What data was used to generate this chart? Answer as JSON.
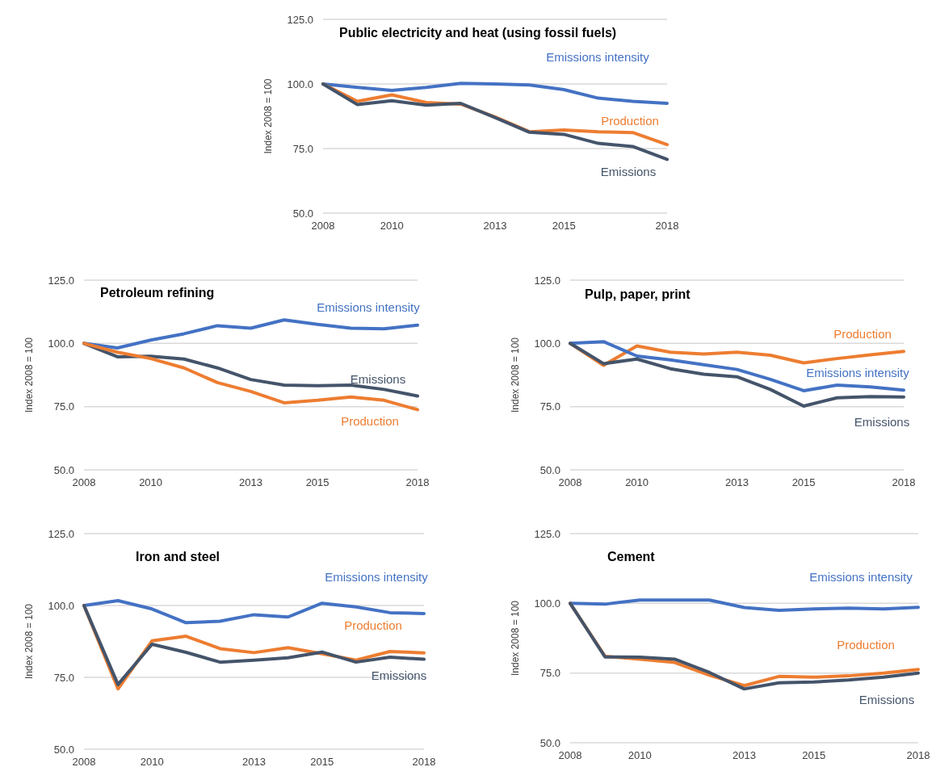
{
  "chart_data": [
    {
      "type": "line",
      "title": "Public electricity and heat (using fossil fuels)",
      "ylabel": "Index 2008 = 100",
      "x": [
        2008,
        2009,
        2010,
        2011,
        2012,
        2013,
        2014,
        2015,
        2016,
        2017,
        2018
      ],
      "xlim": [
        2008,
        2018
      ],
      "xticks": [
        2008,
        2010,
        2013,
        2015,
        2018
      ],
      "ylim": [
        50,
        125
      ],
      "yticks": [
        {
          "value": 50,
          "label": "50.0"
        },
        {
          "value": 75,
          "label": "75.0"
        },
        {
          "value": 100,
          "label": "100.0"
        },
        {
          "value": 125,
          "label": "125.0"
        }
      ],
      "grid": "y",
      "series": [
        {
          "name": "Emissions intensity",
          "color": "#4472c4",
          "values": [
            100,
            98.7,
            97.5,
            98.7,
            100.2,
            100,
            99.6,
            97.8,
            94.5,
            93.3,
            92.5
          ]
        },
        {
          "name": "Production",
          "color": "#ed7d31",
          "values": [
            100,
            93.3,
            95.8,
            92.8,
            92.2,
            87.2,
            81.5,
            82.2,
            81.5,
            81.2,
            76.5
          ]
        },
        {
          "name": "Emissions",
          "color": "#44546a",
          "values": [
            100,
            92,
            93.5,
            91.8,
            92.5,
            87,
            81.3,
            80.5,
            77,
            75.8,
            70.8
          ]
        }
      ]
    },
    {
      "type": "line",
      "title": "Petroleum refining",
      "ylabel": "Index 2008 = 100",
      "x": [
        2008,
        2009,
        2010,
        2011,
        2012,
        2013,
        2014,
        2015,
        2016,
        2017,
        2018
      ],
      "xlim": [
        2008,
        2018
      ],
      "xticks": [
        2008,
        2010,
        2013,
        2015,
        2018
      ],
      "ylim": [
        50,
        125
      ],
      "yticks": [
        {
          "value": 50,
          "label": "50.0"
        },
        {
          "value": 75,
          "label": "75.0"
        },
        {
          "value": 100,
          "label": "100.0"
        },
        {
          "value": 125,
          "label": "125.0"
        }
      ],
      "grid": "y",
      "series": [
        {
          "name": "Emissions intensity",
          "color": "#4472c4",
          "values": [
            100,
            98.2,
            101.3,
            103.8,
            107,
            106,
            109.3,
            107.5,
            106,
            105.8,
            107.2
          ]
        },
        {
          "name": "Emissions",
          "color": "#44546a",
          "values": [
            100,
            94.7,
            94.9,
            93.8,
            90.3,
            85.7,
            83.5,
            83.3,
            83.5,
            81.8,
            79.2
          ]
        },
        {
          "name": "Production",
          "color": "#ed7d31",
          "values": [
            100,
            96.5,
            94,
            90.3,
            84.5,
            81,
            76.5,
            77.5,
            78.8,
            77.5,
            73.8
          ]
        }
      ]
    },
    {
      "type": "line",
      "title": "Pulp, paper, print",
      "ylabel": "Index 2008 = 100",
      "x": [
        2008,
        2009,
        2010,
        2011,
        2012,
        2013,
        2014,
        2015,
        2016,
        2017,
        2018
      ],
      "xlim": [
        2008,
        2018
      ],
      "xticks": [
        2008,
        2010,
        2013,
        2015,
        2018
      ],
      "ylim": [
        50,
        125
      ],
      "yticks": [
        {
          "value": 50,
          "label": "50.0"
        },
        {
          "value": 75,
          "label": "75.0"
        },
        {
          "value": 100,
          "label": "100.0"
        },
        {
          "value": 125,
          "label": "125.0"
        }
      ],
      "grid": "y",
      "series": [
        {
          "name": "Production",
          "color": "#ed7d31",
          "values": [
            100,
            91.3,
            99,
            96.5,
            95.8,
            96.5,
            95.3,
            92.3,
            94,
            95.5,
            96.8
          ]
        },
        {
          "name": "Emissions intensity",
          "color": "#4472c4",
          "values": [
            100,
            100.7,
            95,
            93.5,
            91.6,
            89.7,
            85.8,
            81.3,
            83.5,
            82.8,
            81.5
          ]
        },
        {
          "name": "Emissions",
          "color": "#44546a",
          "values": [
            100,
            92,
            93.8,
            90,
            87.8,
            86.8,
            81.8,
            75.2,
            78.5,
            79,
            78.8
          ]
        }
      ]
    },
    {
      "type": "line",
      "title": "Iron and steel",
      "ylabel": "Index 2008 = 100",
      "x": [
        2008,
        2009,
        2010,
        2011,
        2012,
        2013,
        2014,
        2015,
        2016,
        2017,
        2018
      ],
      "xlim": [
        2008,
        2018
      ],
      "xticks": [
        2008,
        2010,
        2013,
        2015,
        2018
      ],
      "ylim": [
        50,
        125
      ],
      "yticks": [
        {
          "value": 50,
          "label": "50.0"
        },
        {
          "value": 75,
          "label": "75.0"
        },
        {
          "value": 100,
          "label": "100.0"
        },
        {
          "value": 125,
          "label": "125.0"
        }
      ],
      "grid": "y",
      "series": [
        {
          "name": "Emissions intensity",
          "color": "#4472c4",
          "values": [
            100,
            101.7,
            98.8,
            94,
            94.5,
            96.8,
            96,
            100.8,
            99.5,
            97.5,
            97.2
          ]
        },
        {
          "name": "Production",
          "color": "#ed7d31",
          "values": [
            100,
            71,
            87.7,
            89.3,
            85,
            83.6,
            85.3,
            83.2,
            81,
            84,
            83.5
          ]
        },
        {
          "name": "Emissions",
          "color": "#44546a",
          "values": [
            100,
            72.5,
            86.5,
            83.7,
            80.3,
            81,
            81.8,
            83.8,
            80.3,
            82,
            81.3
          ]
        }
      ]
    },
    {
      "type": "line",
      "title": "Cement",
      "ylabel": "Index 2008 = 100",
      "x": [
        2008,
        2009,
        2010,
        2011,
        2012,
        2013,
        2014,
        2015,
        2016,
        2017,
        2018
      ],
      "xlim": [
        2008,
        2018
      ],
      "xticks": [
        2008,
        2010,
        2013,
        2015,
        2018
      ],
      "ylim": [
        50,
        125
      ],
      "yticks": [
        {
          "value": 50,
          "label": "50.0"
        },
        {
          "value": 75,
          "label": "75.0"
        },
        {
          "value": 100,
          "label": "100.0"
        },
        {
          "value": 125,
          "label": "125.0"
        }
      ],
      "grid": "y",
      "series": [
        {
          "name": "Emissions intensity",
          "color": "#4472c4",
          "values": [
            100,
            99.7,
            101.2,
            101.2,
            101.2,
            98.5,
            97.5,
            98,
            98.3,
            98,
            98.6
          ]
        },
        {
          "name": "Production",
          "color": "#ed7d31",
          "values": [
            100,
            81,
            80,
            78.8,
            74.2,
            70.5,
            73.8,
            73.5,
            74,
            75,
            76.3
          ]
        },
        {
          "name": "Emissions",
          "color": "#44546a",
          "values": [
            100,
            80.8,
            80.7,
            80,
            75.2,
            69.3,
            71.5,
            71.8,
            72.5,
            73.5,
            75
          ]
        }
      ]
    }
  ]
}
